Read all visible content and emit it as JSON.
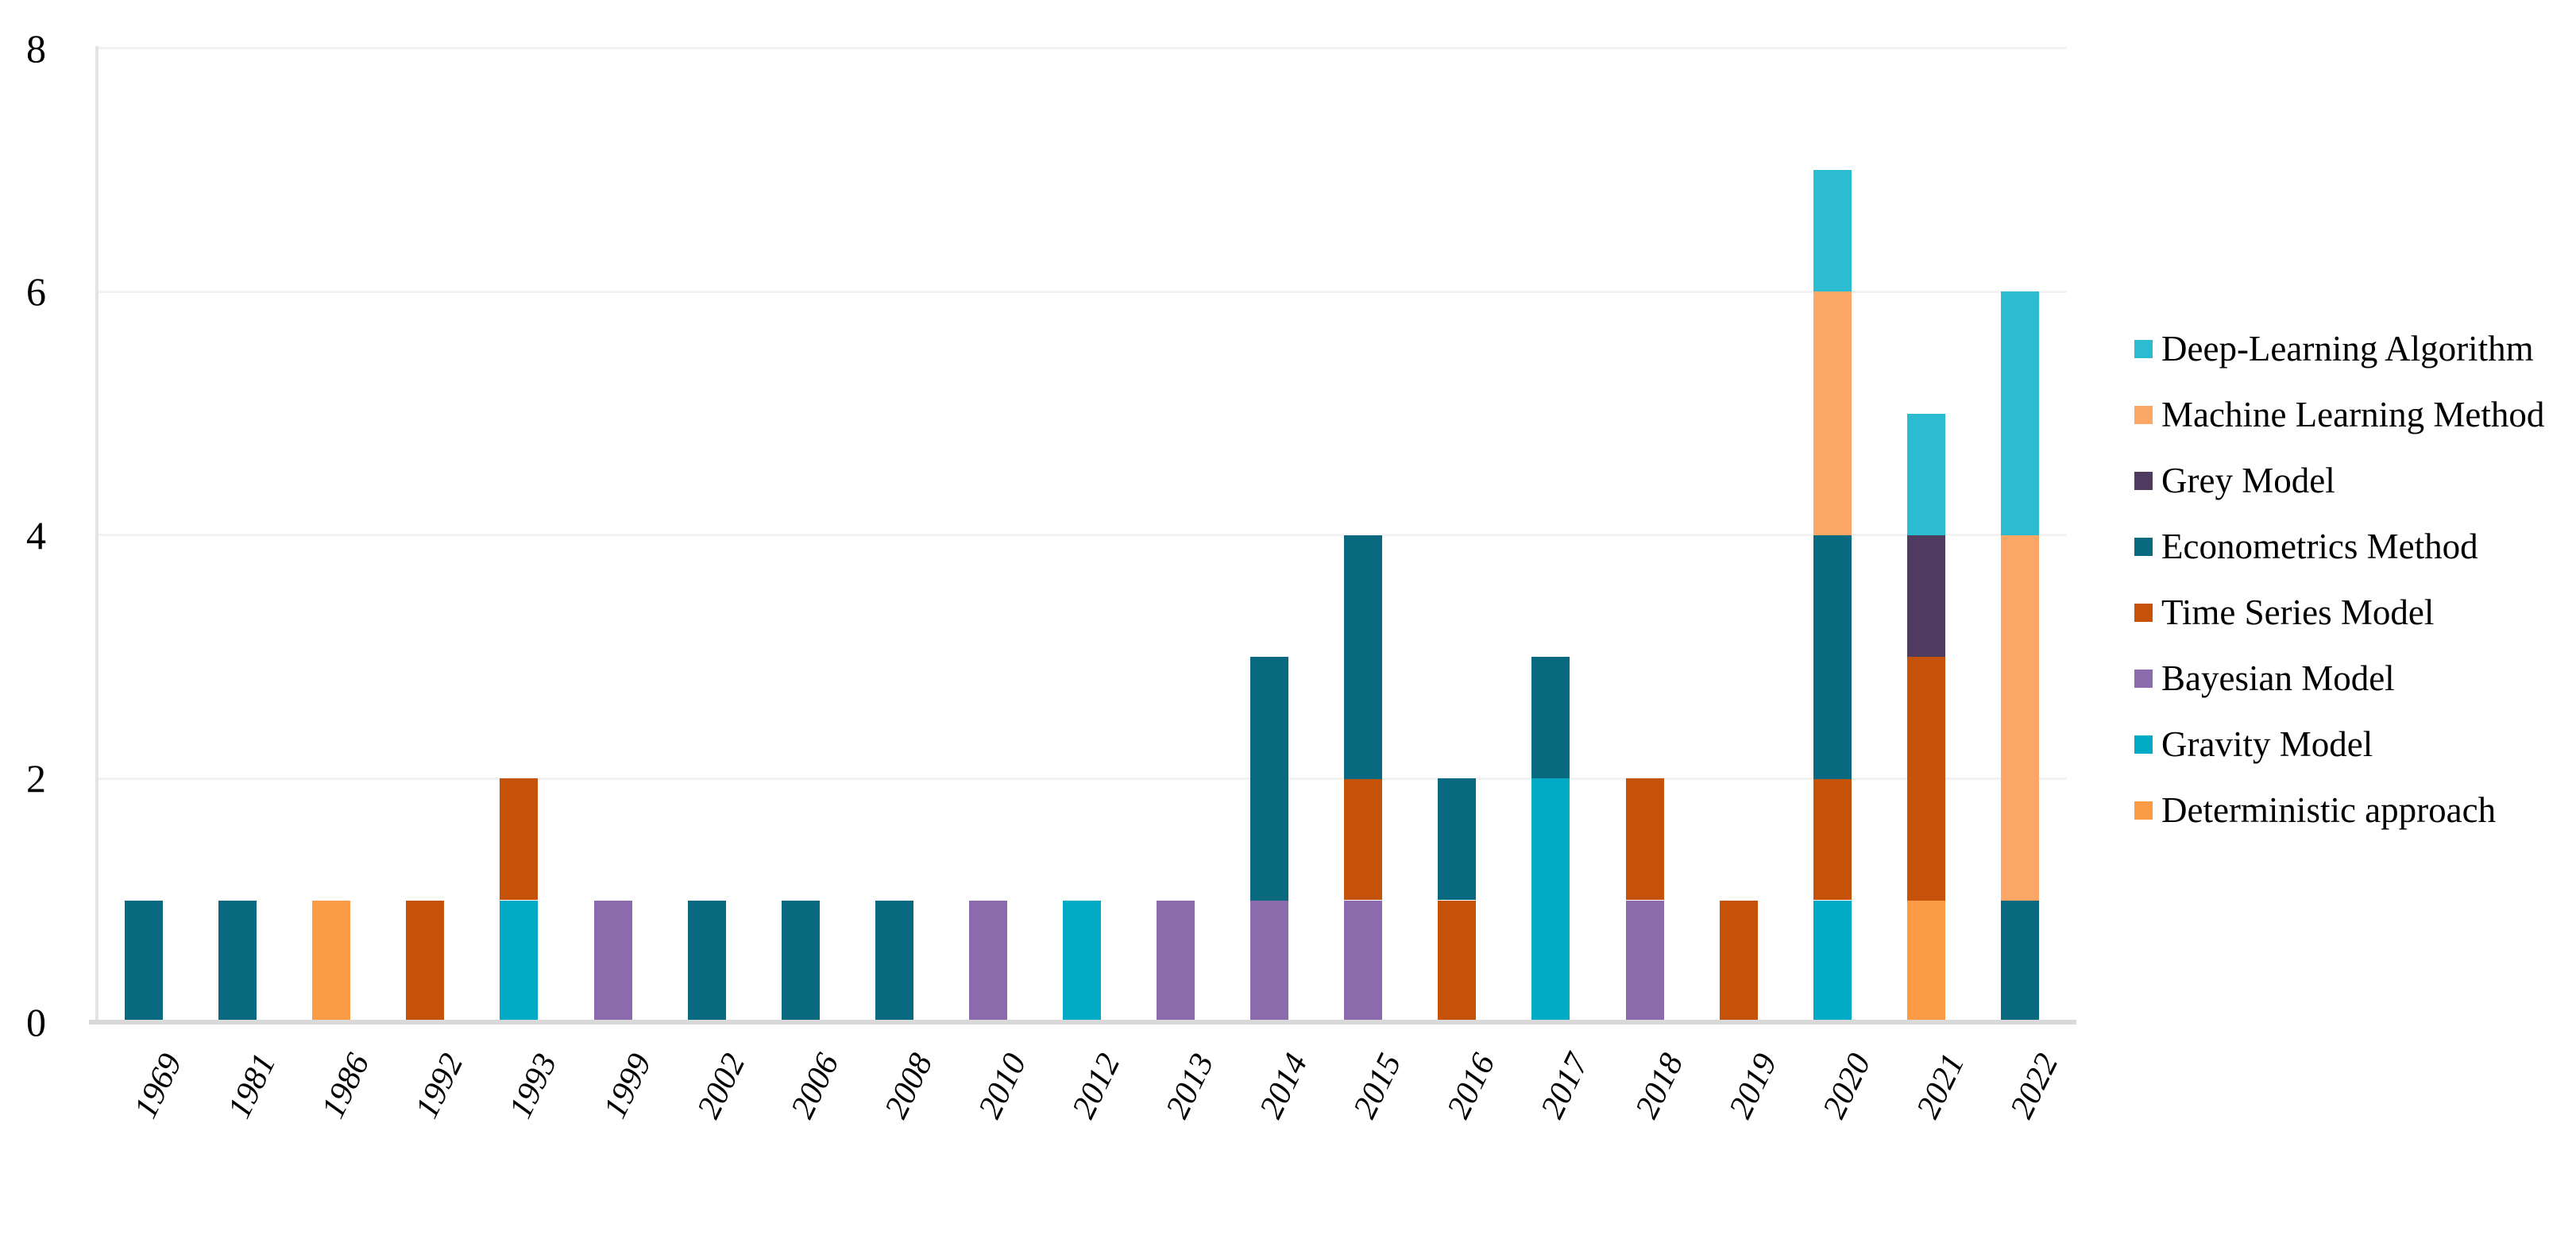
{
  "chart_data": {
    "type": "bar",
    "stacked": true,
    "title": "",
    "xlabel": "",
    "ylabel": "",
    "categories": [
      "1969",
      "1981",
      "1986",
      "1992",
      "1993",
      "1999",
      "2002",
      "2006",
      "2008",
      "2010",
      "2012",
      "2013",
      "2014",
      "2015",
      "2016",
      "2017",
      "2018",
      "2019",
      "2020",
      "2021",
      "2022"
    ],
    "series": [
      {
        "name": "Deep-Learning Algorithm",
        "color": "#2bbcd1",
        "values": [
          0,
          0,
          0,
          0,
          0,
          0,
          0,
          0,
          0,
          0,
          0,
          0,
          0,
          0,
          0,
          0,
          0,
          0,
          1,
          1,
          2
        ]
      },
      {
        "name": "Machine Learning Method",
        "color": "#fca765",
        "values": [
          0,
          0,
          0,
          0,
          0,
          0,
          0,
          0,
          0,
          0,
          0,
          0,
          0,
          0,
          0,
          0,
          0,
          0,
          2,
          0,
          3
        ]
      },
      {
        "name": "Grey Model",
        "color": "#4f3a60",
        "values": [
          0,
          0,
          0,
          0,
          0,
          0,
          0,
          0,
          0,
          0,
          0,
          0,
          0,
          0,
          0,
          0,
          0,
          0,
          0,
          1,
          0
        ]
      },
      {
        "name": "Econometrics Method",
        "color": "#09697e",
        "values": [
          1,
          1,
          0,
          0,
          0,
          0,
          1,
          1,
          1,
          0,
          0,
          0,
          2,
          2,
          1,
          1,
          0,
          0,
          2,
          0,
          1
        ]
      },
      {
        "name": "Time Series Model",
        "color": "#c55208",
        "values": [
          0,
          0,
          0,
          1,
          1,
          0,
          0,
          0,
          0,
          0,
          0,
          0,
          0,
          1,
          1,
          0,
          1,
          1,
          1,
          2,
          0
        ]
      },
      {
        "name": "Bayesian Model",
        "color": "#8c6bad",
        "values": [
          0,
          0,
          0,
          0,
          0,
          1,
          0,
          0,
          0,
          1,
          0,
          1,
          1,
          1,
          0,
          0,
          1,
          0,
          0,
          0,
          0
        ]
      },
      {
        "name": "Gravity Model",
        "color": "#02abc5",
        "values": [
          0,
          0,
          0,
          0,
          1,
          0,
          0,
          0,
          0,
          0,
          1,
          0,
          0,
          0,
          0,
          2,
          0,
          0,
          1,
          0,
          0
        ]
      },
      {
        "name": "Deterministic approach",
        "color": "#fb9b45",
        "values": [
          0,
          0,
          1,
          0,
          0,
          0,
          0,
          0,
          0,
          0,
          0,
          0,
          0,
          0,
          0,
          0,
          0,
          0,
          0,
          1,
          0
        ]
      }
    ],
    "stack_order": "bottom-to-top is reverse of legend order",
    "totals": [
      1,
      1,
      1,
      1,
      2,
      1,
      1,
      1,
      1,
      1,
      1,
      1,
      3,
      4,
      2,
      3,
      2,
      1,
      7,
      5,
      6
    ],
    "yticks": [
      "0",
      "2",
      "4",
      "6",
      "8"
    ],
    "ylim": [
      0,
      8
    ],
    "legend_position": "right",
    "gridlines": "horizontal",
    "gridline_color": "#f2f2f2",
    "axis_line_color": "#d9d9d9"
  }
}
